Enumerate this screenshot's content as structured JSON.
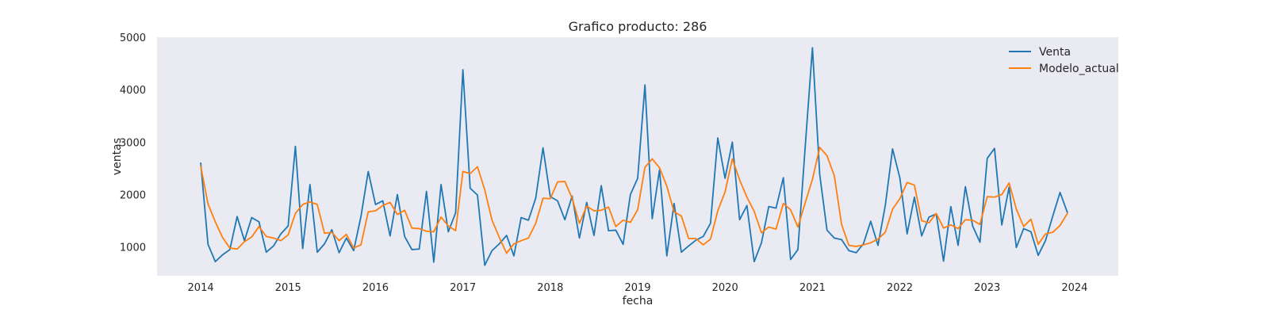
{
  "chart_data": {
    "type": "line",
    "title": "Grafico producto: 286",
    "xlabel": "fecha",
    "ylabel": "ventas",
    "x_start": "2014-01",
    "x_frequency": "monthly",
    "xlim": [
      "2013-07",
      "2024-07"
    ],
    "ylim": [
      450,
      5000
    ],
    "xticks": [
      "2014",
      "2015",
      "2016",
      "2017",
      "2018",
      "2019",
      "2020",
      "2021",
      "2022",
      "2023",
      "2024"
    ],
    "yticks": [
      1000,
      2000,
      3000,
      4000,
      5000
    ],
    "grid": false,
    "background": "#eaeaf2",
    "legend_position": "top-right",
    "series": [
      {
        "name": "Venta",
        "color": "#1f77b4",
        "values": [
          2600,
          1050,
          720,
          850,
          950,
          1580,
          1120,
          1560,
          1480,
          900,
          1020,
          1250,
          1400,
          2920,
          970,
          2190,
          900,
          1060,
          1330,
          890,
          1170,
          930,
          1580,
          2440,
          1810,
          1880,
          1210,
          2000,
          1200,
          950,
          960,
          2060,
          710,
          2190,
          1290,
          1650,
          4380,
          2120,
          1990,
          650,
          930,
          1060,
          1220,
          830,
          1560,
          1510,
          1930,
          2890,
          1960,
          1880,
          1520,
          1970,
          1170,
          1850,
          1220,
          2170,
          1310,
          1320,
          1050,
          2000,
          2310,
          4090,
          1540,
          2470,
          830,
          1830,
          900,
          1020,
          1130,
          1200,
          1450,
          3080,
          2310,
          3000,
          1520,
          1790,
          720,
          1080,
          1770,
          1740,
          2320,
          760,
          950,
          2900,
          4800,
          2380,
          1320,
          1170,
          1140,
          930,
          890,
          1060,
          1490,
          1030,
          1790,
          2870,
          2320,
          1250,
          1950,
          1210,
          1570,
          1630,
          730,
          1770,
          1030,
          2150,
          1400,
          1090,
          2690,
          2880,
          1420,
          2140,
          990,
          1350,
          1290,
          840,
          1120,
          1590,
          2040,
          1660
        ]
      },
      {
        "name": "Modelo_actual",
        "color": "#ff7f0e",
        "values": [
          2540,
          1820,
          1480,
          1180,
          980,
          960,
          1100,
          1190,
          1390,
          1200,
          1170,
          1120,
          1230,
          1640,
          1810,
          1860,
          1810,
          1260,
          1280,
          1120,
          1240,
          980,
          1040,
          1670,
          1690,
          1790,
          1850,
          1620,
          1700,
          1360,
          1350,
          1300,
          1290,
          1570,
          1400,
          1310,
          2440,
          2400,
          2530,
          2090,
          1510,
          1180,
          880,
          1060,
          1120,
          1170,
          1450,
          1930,
          1920,
          2240,
          2250,
          1930,
          1450,
          1780,
          1690,
          1700,
          1760,
          1390,
          1510,
          1470,
          1710,
          2520,
          2680,
          2510,
          2160,
          1670,
          1590,
          1160,
          1160,
          1040,
          1150,
          1690,
          2050,
          2680,
          2280,
          1950,
          1680,
          1270,
          1380,
          1340,
          1830,
          1710,
          1380,
          1840,
          2290,
          2900,
          2740,
          2360,
          1430,
          1030,
          1010,
          1040,
          1080,
          1150,
          1280,
          1720,
          1920,
          2230,
          2180,
          1500,
          1460,
          1640,
          1360,
          1420,
          1350,
          1520,
          1510,
          1430,
          1960,
          1950,
          2000,
          2220,
          1720,
          1390,
          1530,
          1050,
          1250,
          1280,
          1410,
          1640
        ]
      }
    ]
  }
}
